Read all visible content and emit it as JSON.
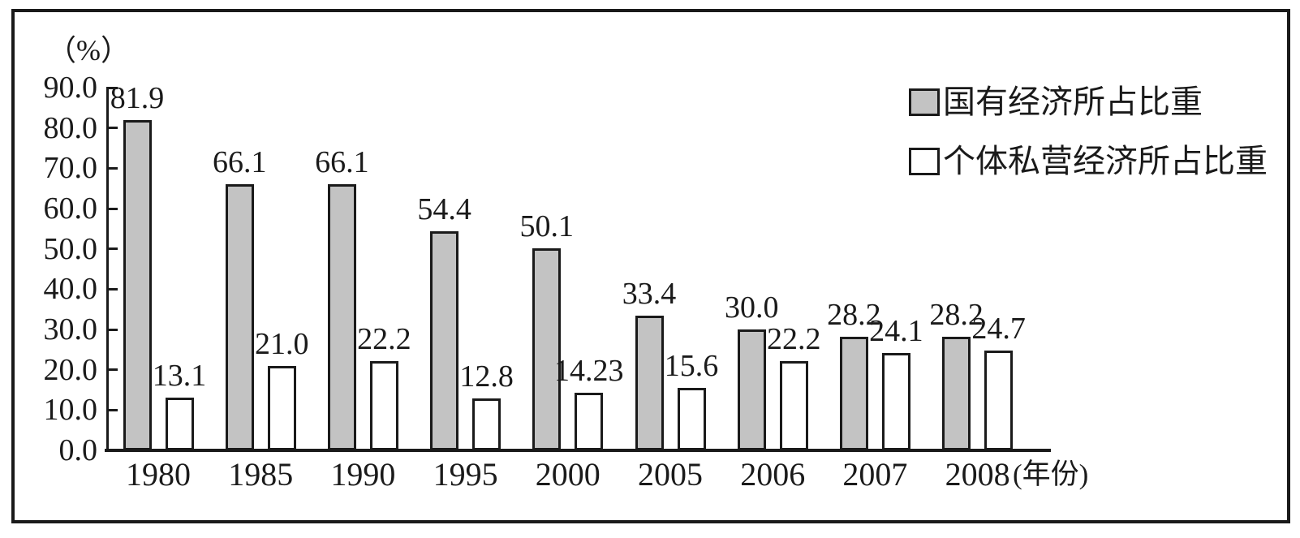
{
  "figure": {
    "y_axis_unit": "（%）",
    "x_axis_unit": "(年份)",
    "y_ticks": [
      "90.0",
      "80.0",
      "70.0",
      "60.0",
      "50.0",
      "40.0",
      "30.0",
      "20.0",
      "10.0",
      "0.0"
    ],
    "colors": {
      "state_owned_fill": "#c3c3c3",
      "private_fill": "#ffffff",
      "stroke": "#1a1a1a"
    }
  },
  "legend": {
    "state_owned": "国有经济所占比重",
    "private": "个体私营经济所占比重"
  },
  "chart_data": {
    "type": "bar",
    "categories": [
      "1980",
      "1985",
      "1990",
      "1995",
      "2000",
      "2005",
      "2006",
      "2007",
      "2008"
    ],
    "series": [
      {
        "name": "国有经济所占比重",
        "fill": "#c3c3c3",
        "values": [
          81.9,
          66.1,
          66.1,
          54.4,
          50.1,
          33.4,
          30.0,
          28.2,
          28.2
        ],
        "labels": [
          "81.9",
          "66.1",
          "66.1",
          "54.4",
          "50.1",
          "33.4",
          "30.0",
          "28.2",
          "28.2"
        ]
      },
      {
        "name": "个体私营经济所占比重",
        "fill": "#ffffff",
        "values": [
          13.1,
          21.0,
          22.2,
          12.8,
          14.23,
          15.6,
          22.2,
          24.1,
          24.7
        ],
        "labels": [
          "13.1",
          "21.0",
          "22.2",
          "12.8",
          "14.23",
          "15.6",
          "22.2",
          "24.1",
          "24.7"
        ]
      }
    ],
    "title": "",
    "xlabel": "(年份)",
    "ylabel": "（%）",
    "ylim": [
      0,
      90
    ],
    "y_tick_step": 10,
    "grid": false,
    "legend_position": "top-right"
  }
}
